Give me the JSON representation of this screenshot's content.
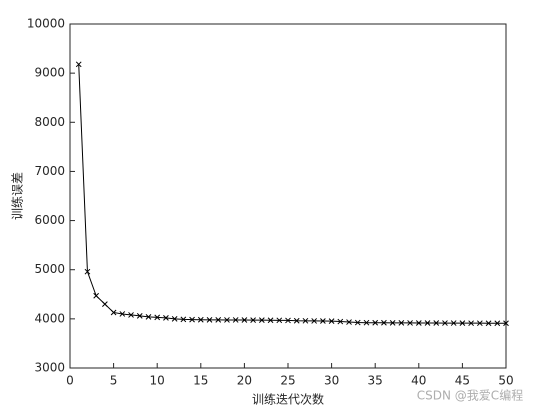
{
  "chart_data": {
    "type": "line",
    "xlabel": "训练迭代次数",
    "ylabel": "训练误差",
    "x": [
      1,
      2,
      3,
      4,
      5,
      6,
      7,
      8,
      9,
      10,
      11,
      12,
      13,
      14,
      15,
      16,
      17,
      18,
      19,
      20,
      21,
      22,
      23,
      24,
      25,
      26,
      27,
      28,
      29,
      30,
      31,
      32,
      33,
      34,
      35,
      36,
      37,
      38,
      39,
      40,
      41,
      42,
      43,
      44,
      45,
      46,
      47,
      48,
      49,
      50
    ],
    "series": [
      {
        "color": "#000000",
        "marker": "x",
        "values": [
          9180,
          4960,
          4470,
          4300,
          4130,
          4100,
          4080,
          4060,
          4040,
          4030,
          4020,
          4000,
          3990,
          3985,
          3982,
          3980,
          3980,
          3978,
          3978,
          3976,
          3975,
          3974,
          3972,
          3970,
          3968,
          3962,
          3960,
          3958,
          3956,
          3954,
          3945,
          3935,
          3925,
          3922,
          3920,
          3920,
          3918,
          3918,
          3917,
          3916,
          3915,
          3915,
          3914,
          3914,
          3913,
          3912,
          3912,
          3911,
          3910,
          3910
        ]
      }
    ],
    "xlim": [
      0,
      50
    ],
    "xticks": [
      0,
      5,
      10,
      15,
      20,
      25,
      30,
      35,
      40,
      45,
      50
    ],
    "ylim": [
      3000,
      10000
    ],
    "yticks": [
      3000,
      4000,
      5000,
      6000,
      7000,
      8000,
      9000,
      10000
    ],
    "watermark": "CSDN @我爱C编程"
  }
}
